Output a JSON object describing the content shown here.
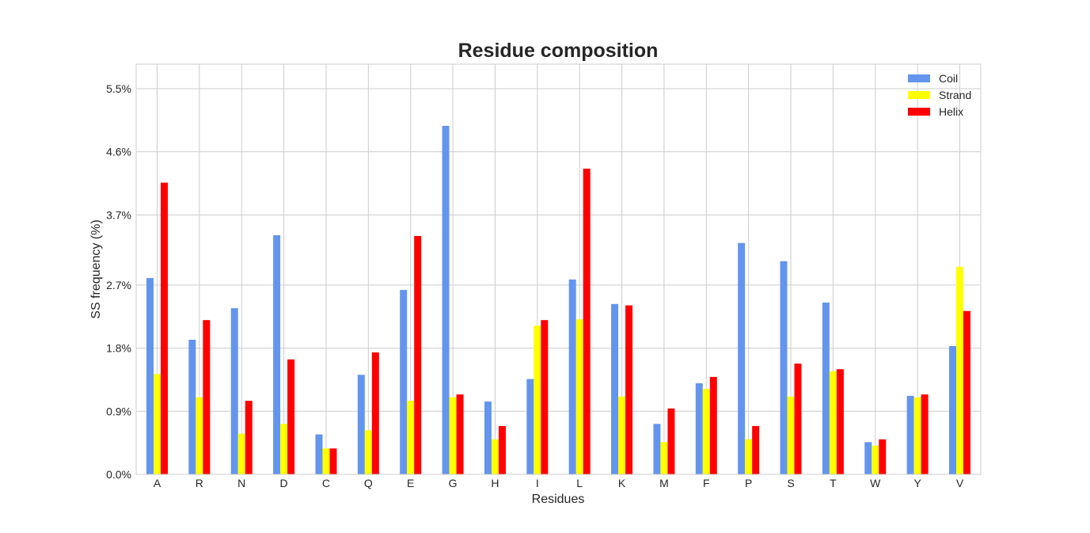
{
  "chart_data": {
    "type": "bar",
    "title": "Residue composition",
    "xlabel": "Residues",
    "ylabel": "SS frequency (%)",
    "ylim": [
      0,
      5.85
    ],
    "yticks": [
      0.0,
      0.9,
      1.8,
      2.7,
      3.7,
      4.6,
      5.5
    ],
    "ytick_labels": [
      "0.0%",
      "0.9%",
      "1.8%",
      "2.7%",
      "3.7%",
      "4.6%",
      "5.5%"
    ],
    "grid": true,
    "legend_position": "top-right",
    "categories": [
      "A",
      "R",
      "N",
      "D",
      "C",
      "Q",
      "E",
      "G",
      "H",
      "I",
      "L",
      "K",
      "M",
      "F",
      "P",
      "S",
      "T",
      "W",
      "Y",
      "V"
    ],
    "series": [
      {
        "name": "Coil",
        "color": "#6495ED",
        "values": [
          2.8,
          1.92,
          2.37,
          3.41,
          0.57,
          1.42,
          2.63,
          4.97,
          1.04,
          1.36,
          2.78,
          2.43,
          0.72,
          1.3,
          3.3,
          3.04,
          2.45,
          0.46,
          1.12,
          1.83
        ]
      },
      {
        "name": "Strand",
        "color": "#FFFF00",
        "values": [
          1.43,
          1.1,
          0.58,
          0.72,
          0.37,
          0.63,
          1.05,
          1.1,
          0.5,
          2.12,
          2.21,
          1.11,
          0.46,
          1.22,
          0.5,
          1.11,
          1.47,
          0.41,
          1.1,
          2.96
        ]
      },
      {
        "name": "Helix",
        "color": "#FF0000",
        "values": [
          4.16,
          2.2,
          1.05,
          1.64,
          0.37,
          1.74,
          3.4,
          1.14,
          0.69,
          2.2,
          4.36,
          2.41,
          0.94,
          1.39,
          0.69,
          1.58,
          1.5,
          0.5,
          1.14,
          2.33
        ]
      }
    ]
  }
}
